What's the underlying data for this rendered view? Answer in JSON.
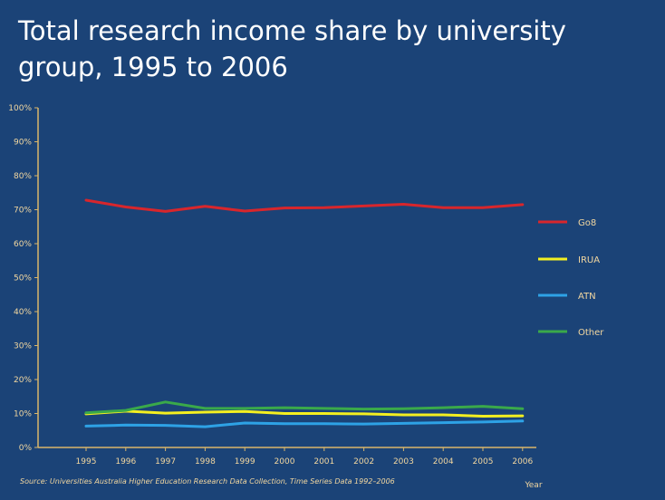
{
  "page": {
    "title": "Total research income share by university group, 1995 to 2006",
    "source": "Source: Universities Australia Higher Education Research Data Collection, Time Series Data 1992–2006"
  },
  "chart_data": {
    "type": "line",
    "title": "Total research income share by university group, 1995 to 2006",
    "xlabel": "Year",
    "ylabel": "",
    "x": [
      "1995",
      "1996",
      "1997",
      "1998",
      "1999",
      "2000",
      "2001",
      "2002",
      "2003",
      "2004",
      "2005",
      "2006"
    ],
    "ylim": [
      0,
      100
    ],
    "yticks": [
      "0%",
      "10%",
      "20%",
      "30%",
      "40%",
      "50%",
      "60%",
      "70%",
      "80%",
      "90%",
      "100%"
    ],
    "grid": false,
    "legend_position": "right",
    "series": [
      {
        "name": "Go8",
        "color": "#d8262c",
        "values": [
          72.8,
          70.8,
          69.5,
          71.0,
          69.6,
          70.5,
          70.6,
          71.1,
          71.6,
          70.6,
          70.6,
          71.5
        ]
      },
      {
        "name": "IRUA",
        "color": "#f3ef20",
        "values": [
          9.9,
          10.7,
          10.1,
          10.4,
          10.6,
          10.0,
          10.0,
          9.9,
          9.6,
          9.6,
          9.2,
          9.3
        ]
      },
      {
        "name": "ATN",
        "color": "#2ea2e6",
        "values": [
          6.3,
          6.6,
          6.5,
          6.1,
          7.2,
          7.0,
          7.0,
          6.9,
          7.1,
          7.3,
          7.5,
          7.8
        ]
      },
      {
        "name": "Other",
        "color": "#3aa94a",
        "values": [
          10.2,
          10.9,
          13.4,
          11.5,
          11.5,
          11.7,
          11.5,
          11.3,
          11.4,
          11.7,
          12.1,
          11.4
        ]
      }
    ]
  }
}
